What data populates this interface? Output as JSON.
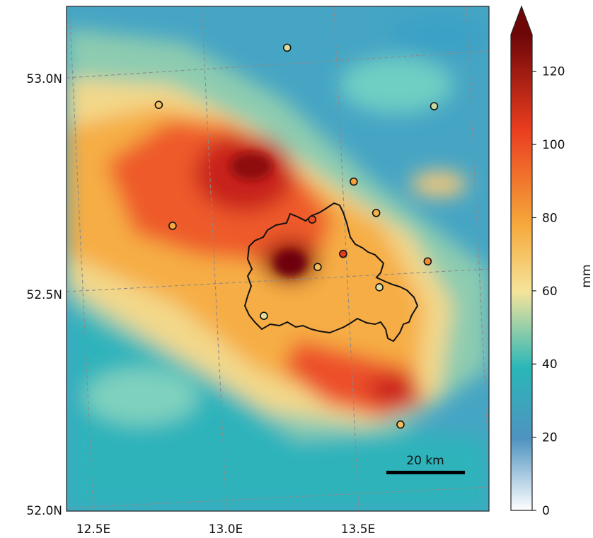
{
  "map": {
    "lat_labels": [
      {
        "value": 53.0,
        "text": "53.0N"
      },
      {
        "value": 52.5,
        "text": "52.5N"
      },
      {
        "value": 52.0,
        "text": "52.0N"
      }
    ],
    "lon_labels": [
      {
        "value": 12.5,
        "text": "12.5E"
      },
      {
        "value": 13.0,
        "text": "13.0E"
      },
      {
        "value": 13.5,
        "text": "13.5E"
      }
    ],
    "scale_bar_label": "20 km",
    "station_markers": [
      {
        "lon": 13.23,
        "lat": 52.99,
        "value": 57
      },
      {
        "lon": 12.73,
        "lat": 52.91,
        "value": 70
      },
      {
        "lon": 13.75,
        "lat": 52.8,
        "value": 55
      },
      {
        "lon": 12.73,
        "lat": 52.63,
        "value": 78
      },
      {
        "lon": 13.42,
        "lat": 52.66,
        "value": 80
      },
      {
        "lon": 13.25,
        "lat": 52.59,
        "value": 100
      },
      {
        "lon": 13.49,
        "lat": 52.58,
        "value": 75
      },
      {
        "lon": 13.25,
        "lat": 52.48,
        "value": 72
      },
      {
        "lon": 13.35,
        "lat": 52.5,
        "value": 105
      },
      {
        "lon": 13.66,
        "lat": 52.45,
        "value": 85
      },
      {
        "lon": 13.03,
        "lat": 52.39,
        "value": 58
      },
      {
        "lon": 13.47,
        "lat": 52.41,
        "value": 58
      },
      {
        "lon": 13.49,
        "lat": 52.09,
        "value": 72
      }
    ]
  },
  "colorbar": {
    "label": "mm",
    "ticks": [
      0,
      20,
      40,
      60,
      80,
      100,
      120
    ],
    "ticks_text": [
      "0",
      "20",
      "40",
      "60",
      "80",
      "100",
      "120"
    ],
    "vmin": 0,
    "vmax": 130,
    "extend": "max",
    "colors": [
      "#ffffff",
      "#4f93c1",
      "#2ab7b8",
      "#f5e49a",
      "#f6a93b",
      "#ea3d1f",
      "#6e0608"
    ]
  }
}
